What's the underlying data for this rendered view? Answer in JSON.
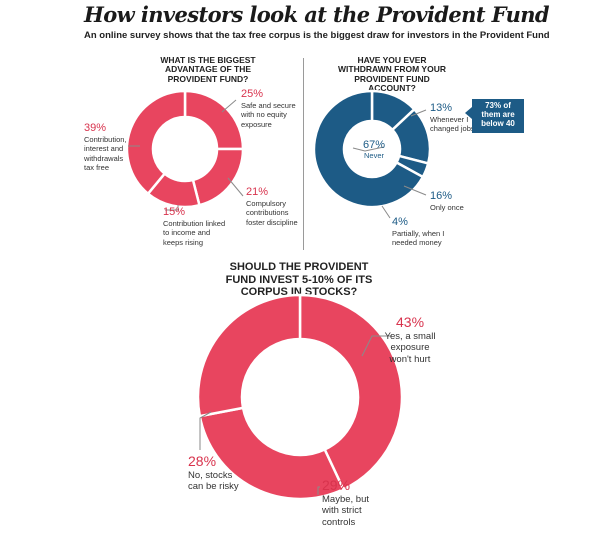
{
  "title": "How investors look at the Provident Fund",
  "subtitle": "An online survey shows that the tax free corpus is the biggest draw for investors in the Provident Fund",
  "colors": {
    "pink": "#e8455f",
    "blue": "#1d5b86",
    "leader": "#8a8a8a"
  },
  "chart_data": [
    {
      "type": "pie",
      "title": "WHAT IS THE BIGGEST ADVANTAGE OF THE PROVIDENT FUND?",
      "slices": [
        {
          "value": 25,
          "pct": "25%",
          "label": "Safe and secure\nwith no equity\nexposure"
        },
        {
          "value": 21,
          "pct": "21%",
          "label": "Compulsory\ncontributions\nfoster discipline"
        },
        {
          "value": 15,
          "pct": "15%",
          "label": "Contribution linked\nto income and\nkeeps rising"
        },
        {
          "value": 39,
          "pct": "39%",
          "label": "Contribution,\ninterest and\nwithdrawals\ntax free"
        }
      ]
    },
    {
      "type": "pie",
      "title": "HAVE YOU EVER WITHDRAWN FROM YOUR PROVIDENT FUND ACCOUNT?",
      "slices": [
        {
          "value": 13,
          "pct": "13%",
          "label": "Whenever I\nchanged jobs"
        },
        {
          "value": 16,
          "pct": "16%",
          "label": "Only once"
        },
        {
          "value": 4,
          "pct": "4%",
          "label": "Partially, when I\nneeded money"
        },
        {
          "value": 67,
          "pct": "67%",
          "label": "Never"
        }
      ],
      "callout": "73% of\nthem are\nbelow 40"
    },
    {
      "type": "pie",
      "title": "SHOULD THE PROVIDENT FUND INVEST 5-10% OF ITS CORPUS IN STOCKS?",
      "slices": [
        {
          "value": 43,
          "pct": "43%",
          "label": "Yes, a small\nexposure\nwon't hurt"
        },
        {
          "value": 29,
          "pct": "29%",
          "label": "Maybe, but\nwith strict\ncontrols"
        },
        {
          "value": 28,
          "pct": "28%",
          "label": "No, stocks\ncan be risky"
        }
      ]
    }
  ]
}
